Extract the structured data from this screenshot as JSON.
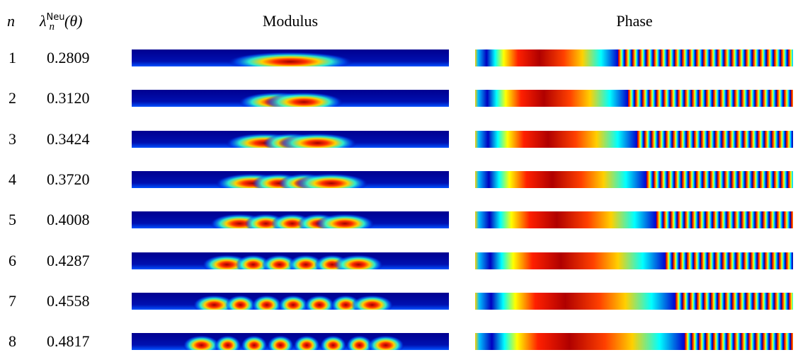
{
  "header": {
    "n": "n",
    "lambda": {
      "symbol": "λ",
      "sup": "Neu",
      "sub": "n",
      "arg": "(θ)"
    },
    "modulus": "Modulus",
    "phase": "Phase"
  },
  "rows": [
    {
      "n": "1",
      "lambda": "0.2809"
    },
    {
      "n": "2",
      "lambda": "0.3120"
    },
    {
      "n": "3",
      "lambda": "0.3424"
    },
    {
      "n": "4",
      "lambda": "0.3720"
    },
    {
      "n": "5",
      "lambda": "0.4008"
    },
    {
      "n": "6",
      "lambda": "0.4287"
    },
    {
      "n": "7",
      "lambda": "0.4558"
    },
    {
      "n": "8",
      "lambda": "0.4817"
    }
  ]
}
